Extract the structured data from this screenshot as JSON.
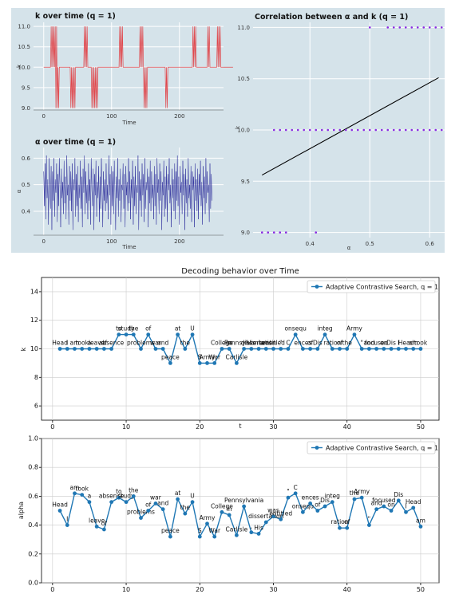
{
  "colors": {
    "panel_bg": "#d5e3ea",
    "k_line": "#e0474c",
    "alpha_line": "#2a2a9a",
    "corr_dot": "#8a2be2",
    "corr_line": "#000000",
    "bottom_line": "#1f77b4"
  },
  "chart_data": [
    {
      "id": "k_time",
      "type": "line",
      "title": "k over time (q = 1)",
      "xlabel": "Time",
      "ylabel": "k",
      "xlim": [
        -15,
        265
      ],
      "ylim": [
        8.95,
        11.1
      ],
      "xticks": [
        0,
        100,
        200
      ],
      "yticks": [
        9.0,
        9.5,
        10.0,
        10.5,
        11.0
      ],
      "ytick_labels": [
        "9.0",
        "9.5",
        "10.0",
        "10.5",
        "11.0"
      ],
      "values": [
        10,
        10,
        10,
        10,
        10,
        10,
        10,
        10,
        10,
        10,
        10,
        11,
        10,
        11,
        10,
        11,
        10,
        11,
        9,
        11,
        9,
        10,
        9,
        10,
        10,
        10,
        10,
        10,
        10,
        10,
        10,
        10,
        10,
        10,
        10,
        10,
        10,
        10,
        10,
        10,
        9,
        10,
        9,
        10,
        9,
        10,
        9,
        10,
        10,
        10,
        10,
        10,
        10,
        10,
        10,
        10,
        10,
        10,
        10,
        10,
        11,
        10,
        11,
        10,
        11,
        10,
        10,
        10,
        10,
        10,
        10,
        9,
        10,
        9,
        10,
        9,
        10,
        9,
        10,
        9,
        10,
        10,
        10,
        10,
        10,
        10,
        10,
        10,
        10,
        10,
        10,
        10,
        10,
        10,
        10,
        10,
        10,
        10,
        10,
        10,
        10,
        10,
        10,
        10,
        10,
        10,
        10,
        10,
        10,
        10,
        10,
        10,
        11,
        10,
        11,
        10,
        11,
        10,
        10,
        10,
        10,
        10,
        10,
        10,
        10,
        10,
        10,
        10,
        10,
        10,
        10,
        10,
        10,
        10,
        10,
        10,
        10,
        10,
        10,
        10,
        10,
        10,
        11,
        10,
        11,
        10,
        11,
        10,
        9,
        10,
        9,
        10,
        9,
        10,
        10,
        10,
        10,
        10,
        10,
        10,
        10,
        10,
        10,
        10,
        10,
        10,
        10,
        10,
        10,
        10,
        10,
        10,
        10,
        10,
        10,
        10,
        10,
        10,
        10,
        10,
        9,
        10,
        9,
        10,
        10,
        10,
        10,
        10,
        10,
        10,
        10,
        10,
        10,
        10,
        10,
        10,
        10,
        10,
        10,
        10,
        10,
        10,
        10,
        10,
        10,
        10,
        10,
        10,
        10,
        10,
        10,
        10,
        10,
        10,
        10,
        10,
        10,
        10,
        10,
        10,
        11,
        10,
        11,
        10,
        11,
        10,
        10,
        10,
        10,
        10,
        10,
        10,
        10,
        10,
        10,
        10,
        10,
        10,
        10,
        10,
        10,
        10,
        11,
        10,
        11,
        10,
        10,
        10,
        10,
        10,
        10,
        10,
        10,
        10,
        10,
        10,
        11,
        10,
        11,
        10,
        11,
        10,
        10,
        10,
        10,
        10,
        10,
        10,
        10,
        10,
        10,
        10,
        10,
        10,
        10,
        10,
        10,
        10,
        10,
        10
      ]
    },
    {
      "id": "alpha_time",
      "type": "line",
      "title": "α over time (q = 1)",
      "xlabel": "Time",
      "ylabel": "α",
      "xlim": [
        -15,
        265
      ],
      "ylim": [
        0.31,
        0.64
      ],
      "xticks": [
        0,
        100,
        200
      ],
      "yticks": [
        0.4,
        0.5,
        0.6
      ],
      "ytick_labels": [
        "0.4",
        "0.5",
        "0.6"
      ],
      "values": [
        0.55,
        0.42,
        0.58,
        0.37,
        0.61,
        0.45,
        0.52,
        0.35,
        0.6,
        0.48,
        0.41,
        0.57,
        0.33,
        0.55,
        0.44,
        0.6,
        0.38,
        0.52,
        0.47,
        0.58,
        0.36,
        0.54,
        0.42,
        0.6,
        0.49,
        0.34,
        0.56,
        0.45,
        0.51,
        0.39,
        0.59,
        0.43,
        0.53,
        0.37,
        0.61,
        0.46,
        0.5,
        0.35,
        0.57,
        0.44,
        0.55,
        0.4,
        0.58,
        0.33,
        0.52,
        0.48,
        0.6,
        0.38,
        0.54,
        0.42,
        0.57,
        0.36,
        0.5,
        0.45,
        0.59,
        0.41,
        0.53,
        0.34,
        0.56,
        0.47,
        0.61,
        0.39,
        0.55,
        0.43,
        0.5,
        0.37,
        0.58,
        0.44,
        0.52,
        0.35,
        0.6,
        0.48,
        0.42,
        0.56,
        0.33,
        0.54,
        0.46,
        0.59,
        0.38,
        0.51,
        0.45,
        0.57,
        0.36,
        0.53,
        0.41,
        0.6,
        0.49,
        0.34,
        0.55,
        0.44,
        0.52,
        0.4,
        0.58,
        0.43,
        0.5,
        0.37,
        0.61,
        0.46,
        0.54,
        0.35,
        0.57,
        0.42,
        0.55,
        0.39,
        0.59,
        0.47,
        0.33,
        0.53,
        0.45,
        0.6,
        0.38,
        0.52,
        0.44,
        0.56,
        0.36,
        0.5,
        0.48,
        0.58,
        0.41,
        0.54,
        0.34,
        0.57,
        0.46,
        0.51,
        0.4,
        0.6,
        0.43,
        0.55,
        0.37,
        0.52,
        0.45,
        0.59,
        0.35,
        0.53,
        0.42,
        0.57,
        0.39,
        0.5,
        0.47,
        0.61,
        0.33,
        0.55,
        0.44,
        0.52,
        0.38,
        0.58,
        0.46,
        0.54,
        0.36,
        0.6,
        0.41,
        0.51,
        0.48,
        0.56,
        0.34,
        0.53,
        0.43,
        0.59,
        0.4,
        0.55,
        0.45,
        0.5,
        0.37,
        0.57,
        0.42,
        0.54,
        0.35,
        0.6,
        0.47,
        0.52,
        0.39,
        0.58,
        0.44,
        0.55,
        0.33,
        0.51,
        0.46,
        0.59,
        0.38,
        0.53,
        0.41,
        0.57,
        0.36,
        0.54,
        0.48,
        0.6,
        0.43,
        0.5,
        0.34,
        0.56,
        0.45,
        0.52,
        0.4,
        0.58,
        0.37,
        0.55,
        0.44,
        0.61,
        0.42,
        0.53,
        0.35,
        0.57,
        0.47,
        0.51,
        0.39,
        0.59,
        0.46,
        0.54,
        0.33,
        0.56,
        0.43,
        0.52,
        0.38,
        0.6,
        0.45,
        0.5,
        0.41,
        0.57,
        0.36,
        0.55,
        0.48,
        0.53,
        0.34,
        0.58,
        0.44,
        0.52,
        0.4,
        0.56,
        0.37,
        0.54,
        0.46,
        0.59,
        0.42,
        0.51,
        0.35,
        0.57,
        0.45,
        0.53,
        0.39,
        0.6,
        0.43,
        0.55,
        0.47,
        0.5,
        0.36,
        0.58,
        0.41,
        0.54,
        0.44
      ]
    },
    {
      "id": "corr",
      "type": "scatter",
      "title": "Correlation between α and k (q = 1)",
      "xlabel": "α",
      "ylabel": "k",
      "xlim": [
        0.305,
        0.625
      ],
      "ylim": [
        8.95,
        11.05
      ],
      "xticks": [
        0.4,
        0.5,
        0.6
      ],
      "xtick_labels": [
        "0.4",
        "0.5",
        "0.6"
      ],
      "yticks": [
        9.0,
        9.5,
        10.0,
        10.5,
        11.0
      ],
      "ytick_labels": [
        "9.0",
        "9.5",
        "10.0",
        "10.5",
        "11.0"
      ],
      "points": [
        [
          0.32,
          9
        ],
        [
          0.33,
          9
        ],
        [
          0.34,
          9
        ],
        [
          0.35,
          9
        ],
        [
          0.36,
          9
        ],
        [
          0.41,
          9
        ],
        [
          0.34,
          10
        ],
        [
          0.35,
          10
        ],
        [
          0.36,
          10
        ],
        [
          0.37,
          10
        ],
        [
          0.38,
          10
        ],
        [
          0.39,
          10
        ],
        [
          0.4,
          10
        ],
        [
          0.41,
          10
        ],
        [
          0.42,
          10
        ],
        [
          0.43,
          10
        ],
        [
          0.44,
          10
        ],
        [
          0.45,
          10
        ],
        [
          0.46,
          10
        ],
        [
          0.47,
          10
        ],
        [
          0.48,
          10
        ],
        [
          0.49,
          10
        ],
        [
          0.5,
          10
        ],
        [
          0.51,
          10
        ],
        [
          0.52,
          10
        ],
        [
          0.53,
          10
        ],
        [
          0.54,
          10
        ],
        [
          0.55,
          10
        ],
        [
          0.56,
          10
        ],
        [
          0.57,
          10
        ],
        [
          0.58,
          10
        ],
        [
          0.59,
          10
        ],
        [
          0.6,
          10
        ],
        [
          0.61,
          10
        ],
        [
          0.62,
          10
        ],
        [
          0.5,
          11
        ],
        [
          0.53,
          11
        ],
        [
          0.54,
          11
        ],
        [
          0.55,
          11
        ],
        [
          0.56,
          11
        ],
        [
          0.57,
          11
        ],
        [
          0.58,
          11
        ],
        [
          0.59,
          11
        ],
        [
          0.6,
          11
        ],
        [
          0.61,
          11
        ],
        [
          0.62,
          11
        ]
      ],
      "fit_line": [
        [
          0.32,
          9.56
        ],
        [
          0.615,
          10.51
        ]
      ]
    },
    {
      "id": "k_decoding",
      "type": "line",
      "title": "Decoding behavior over Time",
      "xlabel": "t",
      "ylabel": "k",
      "legend": "Adaptive Contrastive Search, q = 1",
      "legend_position": "top-right",
      "xlim": [
        -1.5,
        52.5
      ],
      "ylim": [
        5,
        15
      ],
      "xticks": [
        0,
        10,
        20,
        30,
        40,
        50
      ],
      "yticks": [
        6,
        8,
        10,
        12,
        14
      ],
      "x": [
        1,
        2,
        3,
        4,
        5,
        6,
        7,
        8,
        9,
        10,
        11,
        12,
        13,
        14,
        15,
        16,
        17,
        18,
        19,
        20,
        21,
        22,
        23,
        24,
        25,
        26,
        27,
        28,
        29,
        30,
        31,
        32,
        33,
        34,
        35,
        36,
        37,
        38,
        39,
        40,
        41,
        42,
        43,
        44,
        45,
        46,
        47,
        48,
        49,
        50
      ],
      "values": [
        10,
        10,
        10,
        10,
        10,
        10,
        10,
        10,
        11,
        11,
        11,
        10,
        11,
        10,
        10,
        9,
        11,
        10,
        11,
        9,
        9,
        9,
        10,
        10,
        9,
        10,
        10,
        10,
        10,
        10,
        10,
        10,
        11,
        10,
        10,
        10,
        11,
        10,
        10,
        10,
        11,
        10,
        10,
        10,
        10,
        10,
        10,
        10,
        10,
        10
      ],
      "words": [
        "Head",
        "I",
        "am",
        "took",
        "a",
        "leave",
        "of",
        "absence",
        "to",
        "study",
        "the",
        "problems",
        "of",
        "war",
        "and",
        "peace",
        "at",
        "the",
        "U",
        "S",
        "Army",
        "War",
        "College",
        "in",
        "Carlisle",
        "Pennsylvania",
        "His",
        "dissertation",
        "was",
        "entitled",
        "\"",
        "C",
        "onsequ",
        "ences",
        "of",
        "Dis",
        "integ",
        "ration",
        "of",
        "the",
        "Army",
        "\"",
        "and",
        "focused",
        "on",
        "Dis",
        "I",
        "Head",
        "am",
        "took"
      ]
    },
    {
      "id": "alpha_decoding",
      "type": "line",
      "xlabel": "",
      "ylabel": "alpha",
      "legend": "Adaptive Contrastive Search, q = 1",
      "legend_position": "top-right",
      "xlim": [
        -1.5,
        52.5
      ],
      "ylim": [
        0,
        1
      ],
      "xticks": [
        0,
        10,
        20,
        30,
        40,
        50
      ],
      "yticks": [
        0,
        0.2,
        0.4,
        0.6,
        0.8,
        1.0
      ],
      "ytick_labels": [
        "0.0",
        "0.2",
        "0.4",
        "0.6",
        "0.8",
        "1.0"
      ],
      "x": [
        1,
        2,
        3,
        4,
        5,
        6,
        7,
        8,
        9,
        10,
        11,
        12,
        13,
        14,
        15,
        16,
        17,
        18,
        19,
        20,
        21,
        22,
        23,
        24,
        25,
        26,
        27,
        28,
        29,
        30,
        31,
        32,
        33,
        34,
        35,
        36,
        37,
        38,
        39,
        40,
        41,
        42,
        43,
        44,
        45,
        46,
        47,
        48,
        49,
        50
      ],
      "values": [
        0.5,
        0.4,
        0.62,
        0.61,
        0.56,
        0.39,
        0.37,
        0.56,
        0.59,
        0.56,
        0.6,
        0.45,
        0.5,
        0.55,
        0.51,
        0.32,
        0.58,
        0.48,
        0.56,
        0.32,
        0.41,
        0.32,
        0.49,
        0.47,
        0.33,
        0.53,
        0.35,
        0.34,
        0.42,
        0.46,
        0.44,
        0.59,
        0.62,
        0.49,
        0.55,
        0.5,
        0.53,
        0.56,
        0.38,
        0.38,
        0.58,
        0.59,
        0.4,
        0.51,
        0.53,
        0.5,
        0.57,
        0.49,
        0.52,
        0.39
      ],
      "words": [
        "Head",
        "I",
        "am",
        "took",
        "a",
        "leave",
        "of",
        "absence",
        "to",
        "study",
        "the",
        "problems",
        "of",
        "war",
        "and",
        "peace",
        "at",
        "the",
        "U",
        "S",
        "Army",
        "War",
        "College",
        "in",
        "Carlisle",
        "Pennsylvania",
        ",",
        "His",
        "dissertation",
        "was",
        "entitled",
        "\"",
        "C",
        "onsequ",
        "ences",
        "of",
        "Dis",
        "integ",
        "ration",
        "of",
        "the",
        "Army",
        "\"",
        "and",
        "focused",
        "on",
        "Dis",
        "I",
        "Head",
        "am"
      ]
    }
  ]
}
